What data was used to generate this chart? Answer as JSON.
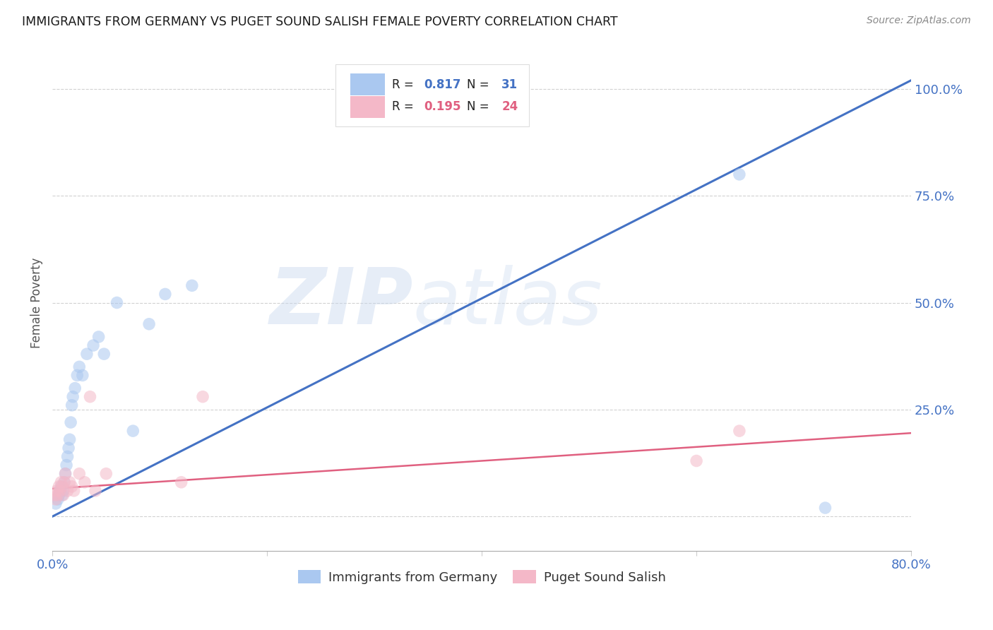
{
  "title": "IMMIGRANTS FROM GERMANY VS PUGET SOUND SALISH FEMALE POVERTY CORRELATION CHART",
  "source": "Source: ZipAtlas.com",
  "ylabel": "Female Poverty",
  "xlim": [
    0.0,
    0.8
  ],
  "ylim": [
    -0.08,
    1.08
  ],
  "yticks": [
    0.0,
    0.25,
    0.5,
    0.75,
    1.0
  ],
  "ytick_labels": [
    "",
    "25.0%",
    "50.0%",
    "75.0%",
    "100.0%"
  ],
  "xticks": [
    0.0,
    0.2,
    0.4,
    0.6,
    0.8
  ],
  "xtick_labels": [
    "0.0%",
    "",
    "",
    "",
    "80.0%"
  ],
  "watermark_zip": "ZIP",
  "watermark_atlas": "atlas",
  "legend_bottom": [
    "Immigrants from Germany",
    "Puget Sound Salish"
  ],
  "blue_r": "0.817",
  "blue_n": "31",
  "pink_r": "0.195",
  "pink_n": "24",
  "blue_scatter_x": [
    0.003,
    0.005,
    0.006,
    0.007,
    0.008,
    0.009,
    0.01,
    0.011,
    0.012,
    0.013,
    0.014,
    0.015,
    0.016,
    0.017,
    0.018,
    0.019,
    0.021,
    0.023,
    0.025,
    0.028,
    0.032,
    0.038,
    0.043,
    0.048,
    0.06,
    0.075,
    0.09,
    0.105,
    0.13,
    0.64,
    0.72
  ],
  "blue_scatter_y": [
    0.03,
    0.04,
    0.05,
    0.06,
    0.07,
    0.05,
    0.06,
    0.08,
    0.1,
    0.12,
    0.14,
    0.16,
    0.18,
    0.22,
    0.26,
    0.28,
    0.3,
    0.33,
    0.35,
    0.33,
    0.38,
    0.4,
    0.42,
    0.38,
    0.5,
    0.2,
    0.45,
    0.52,
    0.54,
    0.8,
    0.02
  ],
  "pink_scatter_x": [
    0.002,
    0.003,
    0.004,
    0.005,
    0.006,
    0.007,
    0.008,
    0.009,
    0.01,
    0.011,
    0.012,
    0.014,
    0.016,
    0.018,
    0.02,
    0.025,
    0.03,
    0.035,
    0.04,
    0.05,
    0.12,
    0.14,
    0.6,
    0.64
  ],
  "pink_scatter_y": [
    0.05,
    0.04,
    0.06,
    0.05,
    0.07,
    0.06,
    0.08,
    0.07,
    0.05,
    0.08,
    0.1,
    0.06,
    0.08,
    0.07,
    0.06,
    0.1,
    0.08,
    0.28,
    0.06,
    0.1,
    0.08,
    0.28,
    0.13,
    0.2
  ],
  "blue_line_x": [
    0.0,
    0.8
  ],
  "blue_line_y": [
    0.0,
    1.02
  ],
  "pink_line_x": [
    0.0,
    0.8
  ],
  "pink_line_y": [
    0.065,
    0.195
  ],
  "scatter_size": 160,
  "scatter_alpha": 0.55,
  "bg_color": "#ffffff",
  "grid_color": "#cccccc",
  "blue_dot_color": "#aac8f0",
  "pink_dot_color": "#f4b8c8",
  "blue_line_color": "#4472c4",
  "pink_line_color": "#e06080",
  "title_color": "#1a1a1a",
  "axis_label_color": "#555555",
  "tick_color": "#4472c4",
  "watermark_color": "#c8d8ee",
  "text_dark": "#222222"
}
